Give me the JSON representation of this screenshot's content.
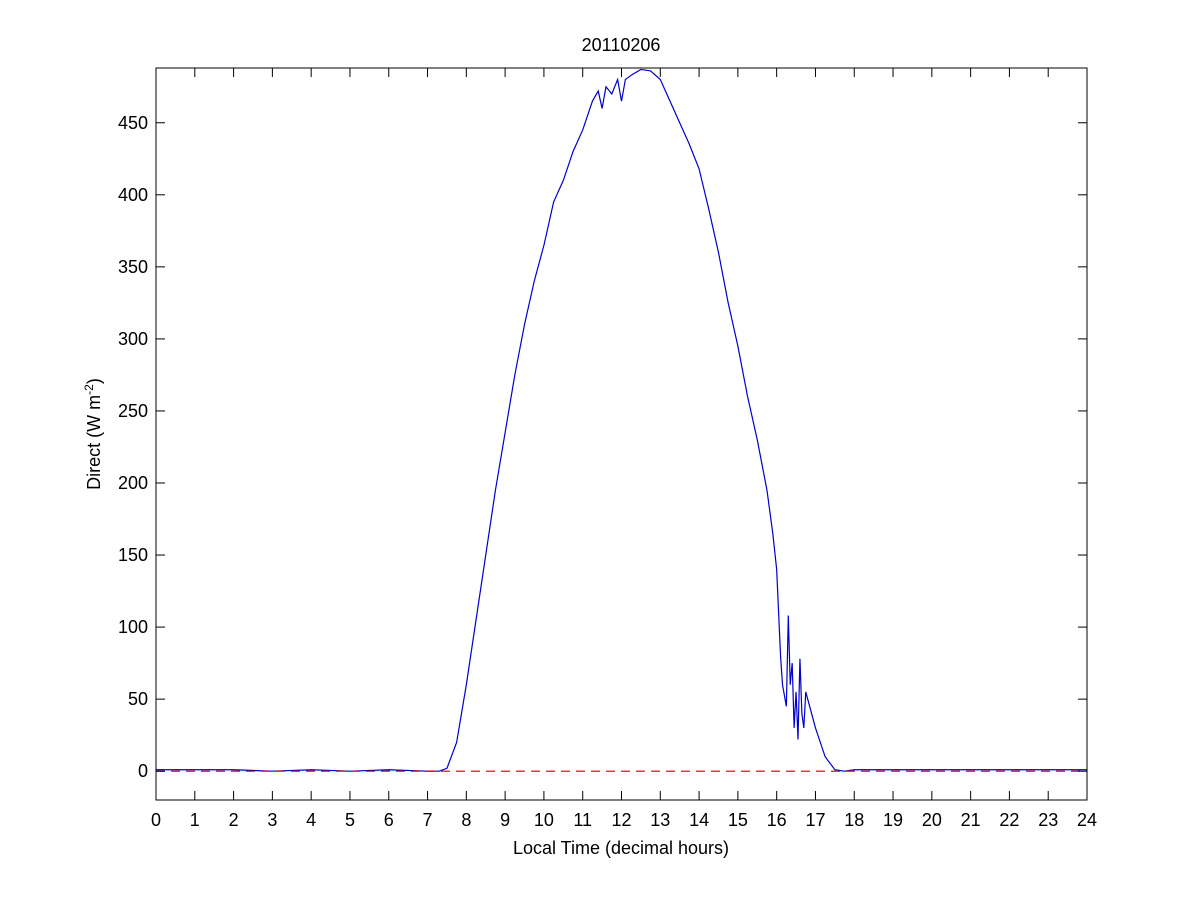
{
  "chart_data": {
    "type": "line",
    "title": "20110206",
    "xlabel": "Local Time (decimal hours)",
    "ylabel": {
      "text": "Direct (W m",
      "sup": "-2",
      "end": ")"
    },
    "xlim": [
      0,
      24
    ],
    "ylim": [
      -20,
      488
    ],
    "xticks": [
      0,
      1,
      2,
      3,
      4,
      5,
      6,
      7,
      8,
      9,
      10,
      11,
      12,
      13,
      14,
      15,
      16,
      17,
      18,
      19,
      20,
      21,
      22,
      23,
      24
    ],
    "yticks": [
      0,
      50,
      100,
      150,
      200,
      250,
      300,
      350,
      400,
      450
    ],
    "grid": false,
    "series": [
      {
        "color": "#0000cc",
        "dash": false,
        "x": [
          0,
          1,
          2,
          3,
          4,
          5,
          6,
          7,
          7.3,
          7.5,
          7.75,
          8,
          8.25,
          8.5,
          8.75,
          9,
          9.25,
          9.5,
          9.75,
          10,
          10.25,
          10.5,
          10.75,
          11,
          11.25,
          11.4,
          11.5,
          11.6,
          11.75,
          11.9,
          12,
          12.1,
          12.25,
          12.5,
          12.75,
          13,
          13.25,
          13.5,
          13.75,
          14,
          14.25,
          14.5,
          14.75,
          15,
          15.25,
          15.5,
          15.75,
          15.9,
          16,
          16.1,
          16.15,
          16.25,
          16.3,
          16.35,
          16.4,
          16.45,
          16.5,
          16.55,
          16.6,
          16.65,
          16.7,
          16.75,
          16.85,
          17,
          17.25,
          17.5,
          17.75,
          18,
          19,
          20,
          21,
          22,
          23,
          24
        ],
        "values": [
          1,
          1,
          1,
          0,
          1,
          0,
          1,
          0,
          0,
          2,
          20,
          60,
          105,
          150,
          195,
          235,
          275,
          310,
          340,
          365,
          395,
          410,
          430,
          445,
          465,
          472,
          460,
          475,
          470,
          480,
          465,
          480,
          483,
          487,
          486,
          480,
          465,
          450,
          435,
          418,
          390,
          360,
          325,
          295,
          260,
          230,
          195,
          165,
          140,
          80,
          60,
          45,
          108,
          60,
          75,
          30,
          55,
          22,
          78,
          40,
          30,
          55,
          45,
          30,
          10,
          1,
          0,
          1,
          1,
          1,
          1,
          1,
          1,
          1
        ]
      },
      {
        "color": "#cc0000",
        "dash": true,
        "x": [
          0,
          24
        ],
        "values": [
          0,
          0
        ]
      }
    ]
  }
}
